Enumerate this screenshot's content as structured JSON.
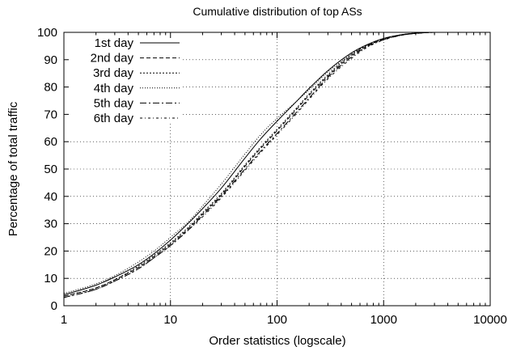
{
  "chart_data": {
    "type": "line",
    "title": "Cumulative distribution of top ASs",
    "xlabel": "Order statistics (logscale)",
    "ylabel": "Percentage of total traffic",
    "xscale": "log",
    "xlim": [
      1,
      10000
    ],
    "ylim": [
      0,
      100
    ],
    "x_ticks": [
      1,
      10,
      100,
      1000,
      10000
    ],
    "x_tick_labels": [
      "1",
      "10",
      "100",
      "1000",
      "10000"
    ],
    "y_ticks": [
      0,
      10,
      20,
      30,
      40,
      50,
      60,
      70,
      80,
      90,
      100
    ],
    "y_tick_labels": [
      "0",
      "10",
      "20",
      "30",
      "40",
      "50",
      "60",
      "70",
      "80",
      "90",
      "100"
    ],
    "grid": true,
    "legend_position": "top-left",
    "x": [
      1,
      2,
      3,
      5,
      7,
      10,
      15,
      20,
      30,
      50,
      70,
      100,
      150,
      200,
      300,
      500,
      700,
      1000,
      1500,
      2000,
      3000,
      5000,
      10000
    ],
    "series": [
      {
        "name": "1st day",
        "dash": "",
        "values": [
          4,
          7.5,
          10.5,
          15,
          19,
          24,
          30.5,
          35.5,
          43,
          54,
          61,
          67.5,
          74.5,
          79.5,
          86,
          92.5,
          95.5,
          97.8,
          99.2,
          99.7,
          100,
          100,
          100
        ]
      },
      {
        "name": "2nd day",
        "dash": "5,3",
        "values": [
          3.5,
          6.5,
          9.5,
          14,
          18,
          22.5,
          28.5,
          33.5,
          40.5,
          51,
          57.5,
          64,
          71.5,
          77,
          84,
          91.5,
          95,
          97.5,
          99.1,
          99.6,
          100,
          100,
          100
        ]
      },
      {
        "name": "3rd day",
        "dash": "2,2",
        "values": [
          3.5,
          6.5,
          9.5,
          14.5,
          18.5,
          23,
          29,
          34,
          41,
          51.5,
          58,
          64.5,
          72,
          77.5,
          84.5,
          92,
          95.3,
          97.7,
          99.2,
          99.7,
          100,
          100,
          100
        ]
      },
      {
        "name": "4th day",
        "dash": "1,2",
        "values": [
          4.5,
          8,
          11,
          16,
          20,
          25,
          31,
          36.5,
          44.5,
          55.5,
          62.5,
          68.5,
          74.5,
          79,
          85.5,
          92,
          95.2,
          97.6,
          99.1,
          99.6,
          100,
          100,
          100
        ]
      },
      {
        "name": "5th day",
        "dash": "8,3,2,3",
        "values": [
          3,
          6,
          9,
          13.5,
          17.5,
          22,
          28,
          33,
          40,
          50,
          56.5,
          63,
          70.5,
          76,
          83.5,
          91,
          94.8,
          97.3,
          99,
          99.6,
          100,
          100,
          100
        ]
      },
      {
        "name": "6th day",
        "dash": "3,3,1,3",
        "values": [
          3,
          6,
          9,
          13.5,
          17.5,
          22,
          28,
          32.5,
          39.5,
          49.5,
          56,
          62.5,
          70,
          75.5,
          83,
          90.5,
          94.5,
          97.2,
          99,
          99.6,
          100,
          100,
          100
        ]
      }
    ]
  }
}
